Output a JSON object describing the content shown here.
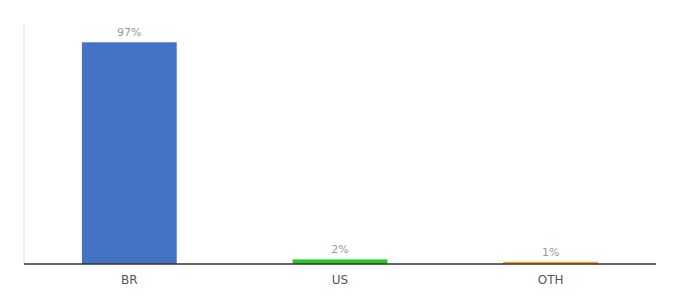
{
  "chart_data": {
    "type": "bar",
    "categories": [
      "BR",
      "US",
      "OTH"
    ],
    "values": [
      97,
      2,
      1
    ],
    "value_labels": [
      "97%",
      "2%",
      "1%"
    ],
    "colors": [
      "#4472c4",
      "#21c921",
      "#f5a623"
    ],
    "ylim": [
      0,
      105
    ],
    "data_labels": true,
    "tick_labels": "x",
    "grid": false
  }
}
